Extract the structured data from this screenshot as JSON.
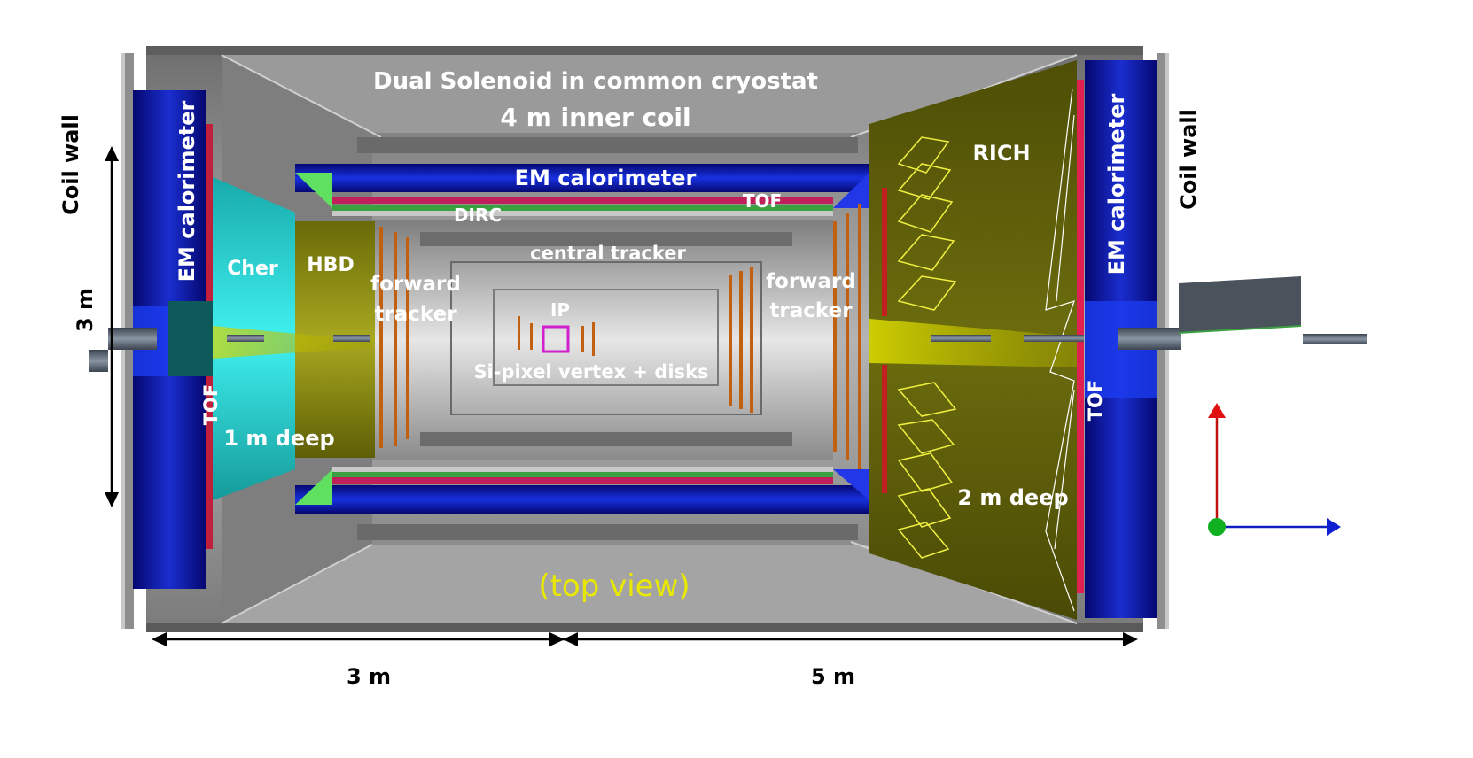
{
  "labels": {
    "solenoid": "Dual Solenoid in common cryostat",
    "inner_coil": "4 m inner coil",
    "em_cal_barrel": "EM calorimeter",
    "em_cal_left": "EM calorimeter",
    "em_cal_right": "EM calorimeter",
    "coil_wall_left": "Coil wall",
    "coil_wall_right": "Coil wall",
    "cher": "Cher",
    "hbd": "HBD",
    "dirc": "DIRC",
    "tof_top": "TOF",
    "tof_left": "TOF",
    "tof_right": "TOF",
    "central_tracker": "central tracker",
    "fwd_tracker_left_1": "forward",
    "fwd_tracker_left_2": "tracker",
    "fwd_tracker_right_1": "forward",
    "fwd_tracker_right_2": "tracker",
    "ip": "IP",
    "si_pixel": "Si-pixel vertex + disks",
    "rich": "RICH",
    "one_m_deep": "1 m deep",
    "two_m_deep": "2 m deep",
    "top_view": "(top view)",
    "height_dim": "3 m",
    "length_left": "3 m",
    "length_right": "5 m"
  },
  "colors": {
    "em_calorimeter": "#0a10a0",
    "cherenkov": "#20c8c8",
    "hbd": "#7a7a10",
    "rich": "#5a5a08",
    "cryostat": "#8c8c8c",
    "view_label": "#e8e800"
  }
}
